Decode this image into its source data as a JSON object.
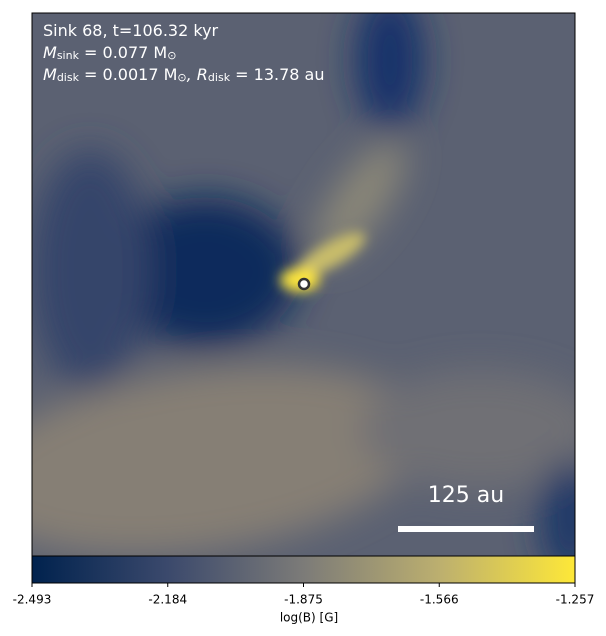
{
  "chart_data": {
    "type": "heatmap",
    "annotations": [
      [
        {
          "text": "Sink 68, t=106.32 kyr",
          "sub": false
        }
      ],
      [
        {
          "text": "M",
          "sub": false
        },
        {
          "text": "sink",
          "sub": true
        },
        {
          "text": " = 0.077 M",
          "sub": false
        },
        {
          "text": "⊙",
          "sub": true
        }
      ],
      [
        {
          "text": "M",
          "sub": false
        },
        {
          "text": "disk",
          "sub": true
        },
        {
          "text": " = 0.0017 M",
          "sub": false
        },
        {
          "text": "⊙",
          "sub": true
        },
        {
          "text": ", R",
          "sub": false
        },
        {
          "text": "disk",
          "sub": true
        },
        {
          "text": " = 13.78 au",
          "sub": false
        }
      ]
    ],
    "scale_bar_label": "125 au",
    "colorbar": {
      "label": "log(B) [G]",
      "lim": [
        -2.493,
        -1.257
      ],
      "ticks": [
        -2.493,
        -2.184,
        -1.875,
        -1.566,
        -1.257
      ],
      "colors": [
        "#00224e",
        "#3b496c",
        "#7c7b78",
        "#bcaf6f",
        "#fee838"
      ]
    }
  }
}
